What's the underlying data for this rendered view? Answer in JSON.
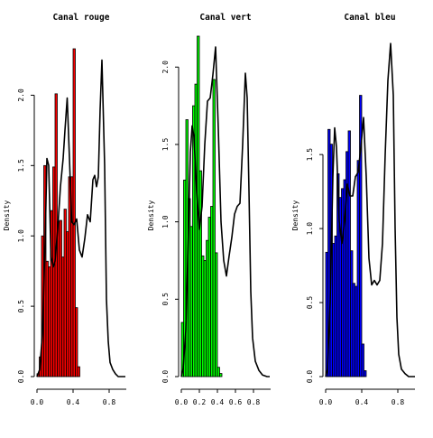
{
  "chart_data": [
    {
      "type": "bar",
      "title": "Canal rouge",
      "ylabel": "Density",
      "xlabel": "",
      "color": "#ff0000",
      "xlim": [
        -0.01,
        0.99
      ],
      "ylim": [
        0,
        2.42
      ],
      "x_ticks": [
        "0.0",
        "0.4",
        "0.8"
      ],
      "x_tick_values": [
        0,
        0.4,
        0.8
      ],
      "y_ticks": [
        "0.0",
        "0.5",
        "1.0",
        "1.5",
        "2.0"
      ],
      "y_tick_values": [
        0,
        0.5,
        1.0,
        1.5,
        2.0
      ],
      "bin_width": 0.025,
      "bin_start": 0,
      "densities": [
        0.02,
        0.14,
        1.0,
        1.5,
        0.82,
        0.78,
        1.18,
        1.49,
        2.01,
        1.1,
        1.11,
        0.85,
        1.19,
        1.03,
        1.42,
        1.42,
        2.33,
        0.49,
        0.07
      ],
      "density_curve": {
        "x": [
          0,
          0.03,
          0.06,
          0.09,
          0.11,
          0.13,
          0.155,
          0.18,
          0.2,
          0.23,
          0.26,
          0.29,
          0.31,
          0.335,
          0.36,
          0.385,
          0.41,
          0.44,
          0.47,
          0.5,
          0.53,
          0.56,
          0.59,
          0.62,
          0.64,
          0.66,
          0.68,
          0.7,
          0.72,
          0.75,
          0.77,
          0.79,
          0.81,
          0.84,
          0.87,
          0.9,
          0.94,
          0.98
        ],
        "y": [
          0,
          0.05,
          0.3,
          0.95,
          1.55,
          1.5,
          0.85,
          0.78,
          0.82,
          1.05,
          1.35,
          1.55,
          1.75,
          1.98,
          1.55,
          1.1,
          1.08,
          1.12,
          0.9,
          0.85,
          0.98,
          1.15,
          1.1,
          1.4,
          1.43,
          1.35,
          1.42,
          1.9,
          2.25,
          1.5,
          0.55,
          0.25,
          0.1,
          0.05,
          0.02,
          0,
          0,
          0
        ]
      }
    },
    {
      "type": "bar",
      "title": "Canal vert",
      "ylabel": "Density",
      "xlabel": "",
      "color": "#00ff00",
      "xlim": [
        -0.01,
        0.99
      ],
      "ylim": [
        0,
        2.2
      ],
      "x_ticks": [
        "0.0",
        "0.2",
        "0.4",
        "0.6",
        "0.8"
      ],
      "x_tick_values": [
        0,
        0.2,
        0.4,
        0.6,
        0.8
      ],
      "y_ticks": [
        "0.0",
        "0.5",
        "1.0",
        "1.5",
        "2.0"
      ],
      "y_tick_values": [
        0,
        0.5,
        1.0,
        1.5,
        2.0
      ],
      "bin_width": 0.025,
      "bin_start": 0,
      "densities": [
        0.35,
        1.27,
        1.66,
        1.15,
        0.97,
        1.75,
        1.89,
        2.2,
        1.33,
        0.78,
        0.75,
        0.88,
        1.03,
        1.1,
        1.92,
        0.8,
        0.06,
        0.02
      ],
      "density_curve": {
        "x": [
          0,
          0.02,
          0.05,
          0.08,
          0.1,
          0.12,
          0.14,
          0.17,
          0.2,
          0.23,
          0.26,
          0.29,
          0.32,
          0.35,
          0.38,
          0.41,
          0.44,
          0.47,
          0.5,
          0.53,
          0.56,
          0.59,
          0.62,
          0.65,
          0.68,
          0.71,
          0.73,
          0.75,
          0.77,
          0.79,
          0.82,
          0.86,
          0.9,
          0.95,
          0.98
        ],
        "y": [
          0,
          0.05,
          0.3,
          0.95,
          1.45,
          1.62,
          1.55,
          1.2,
          0.95,
          1.1,
          1.5,
          1.78,
          1.8,
          1.95,
          2.13,
          1.6,
          1.0,
          0.75,
          0.65,
          0.78,
          0.9,
          1.05,
          1.1,
          1.12,
          1.5,
          1.96,
          1.8,
          1.2,
          0.55,
          0.25,
          0.1,
          0.04,
          0.01,
          0,
          0
        ]
      }
    },
    {
      "type": "bar",
      "title": "Canal bleu",
      "ylabel": "Density",
      "xlabel": "",
      "color": "#0000ff",
      "xlim": [
        -0.01,
        0.99
      ],
      "ylim": [
        0,
        2.3
      ],
      "x_ticks": [
        "0.0",
        "0.4",
        "0.8"
      ],
      "x_tick_values": [
        0,
        0.4,
        0.8
      ],
      "y_ticks": [
        "0.0",
        "0.5",
        "1.0",
        "1.5"
      ],
      "y_tick_values": [
        0,
        0.5,
        1.0,
        1.5
      ],
      "bin_width": 0.025,
      "bin_start": 0,
      "densities": [
        0.84,
        1.67,
        1.57,
        0.9,
        0.95,
        1.37,
        1.21,
        1.27,
        1.33,
        1.52,
        1.66,
        0.85,
        0.63,
        0.61,
        1.46,
        1.9,
        0.22,
        0.04
      ],
      "density_curve": {
        "x": [
          0,
          0.02,
          0.05,
          0.08,
          0.1,
          0.12,
          0.15,
          0.18,
          0.21,
          0.24,
          0.27,
          0.3,
          0.33,
          0.36,
          0.39,
          0.42,
          0.45,
          0.48,
          0.51,
          0.54,
          0.57,
          0.6,
          0.63,
          0.66,
          0.69,
          0.72,
          0.75,
          0.77,
          0.79,
          0.81,
          0.84,
          0.88,
          0.92,
          0.96,
          0.99
        ],
        "y": [
          0,
          0.05,
          0.5,
          1.35,
          1.68,
          1.55,
          1.05,
          0.9,
          1.05,
          1.3,
          1.22,
          1.22,
          1.35,
          1.38,
          1.55,
          1.75,
          1.35,
          0.8,
          0.62,
          0.65,
          0.62,
          0.65,
          0.9,
          1.5,
          2.0,
          2.25,
          1.9,
          1.0,
          0.4,
          0.15,
          0.05,
          0.02,
          0,
          0,
          0
        ]
      }
    }
  ]
}
